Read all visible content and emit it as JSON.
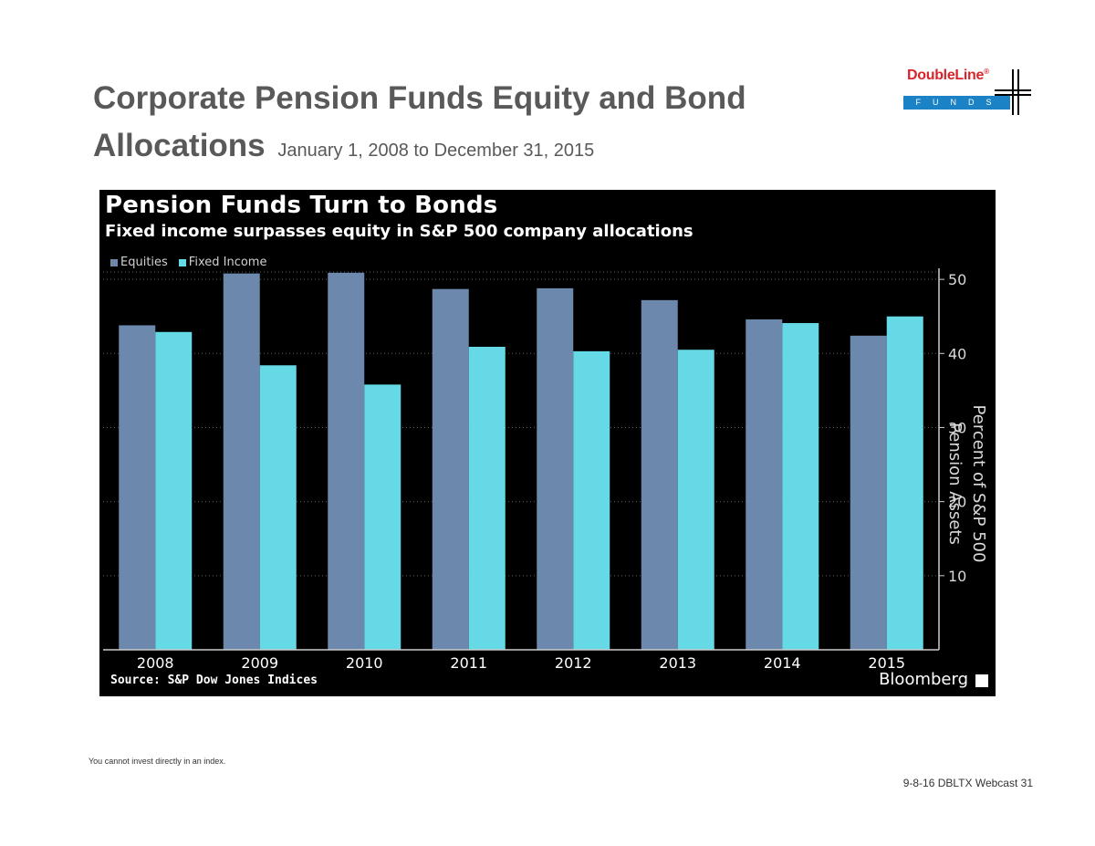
{
  "slide": {
    "title": "Corporate Pension Funds Equity and Bond Allocations",
    "subtitle": "January 1, 2008 to December 31, 2015",
    "footnote": "You cannot invest directly in an index.",
    "page_ref": "9-8-16 DBLTX Webcast 31"
  },
  "logo": {
    "wordmark": "DoubleLine",
    "registered": "®",
    "tagline": "FUNDS",
    "brand_color": "#d7262b",
    "bar_color": "#1b82c5"
  },
  "chart_panel": {
    "source": "Source: S&P Dow Jones Indices",
    "brand": "Bloomberg",
    "background": "#000000"
  },
  "chart_data": {
    "type": "bar",
    "title": "Pension Funds Turn to Bonds",
    "subtitle": "Fixed income surpasses equity in S&P 500 company allocations",
    "xlabel": "",
    "ylabel": "Percent of S&P 500 Pension Assets",
    "categories": [
      "2008",
      "2009",
      "2010",
      "2011",
      "2012",
      "2013",
      "2014",
      "2015"
    ],
    "series": [
      {
        "name": "Equities",
        "color": "#6d88ad",
        "values": [
          43.8,
          50.8,
          50.9,
          48.7,
          48.8,
          47.2,
          44.6,
          42.4
        ]
      },
      {
        "name": "Fixed Income",
        "color": "#66d9e6",
        "values": [
          42.9,
          38.4,
          35.8,
          40.9,
          40.3,
          40.5,
          44.1,
          45.0
        ]
      }
    ],
    "ylim": [
      0,
      51
    ],
    "yticks": [
      10,
      20,
      30,
      40,
      50
    ],
    "y_axis_side": "right",
    "grid": true,
    "legend": "top-left"
  }
}
